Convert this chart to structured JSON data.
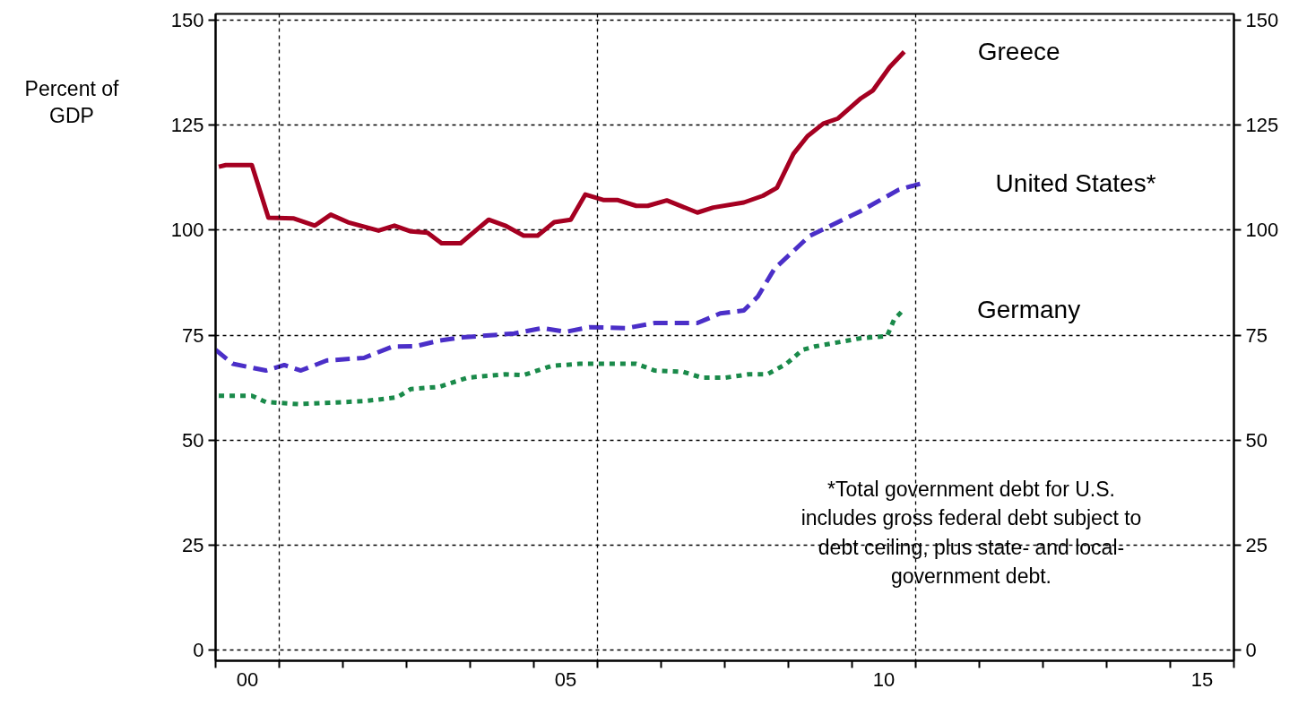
{
  "chart_data": {
    "type": "line",
    "ylabel": "Percent of GDP",
    "xlim": [
      1999.5,
      2015.5
    ],
    "xticks": [
      {
        "value": 1999.5,
        "label": null
      },
      {
        "value": 2000,
        "label": "00"
      },
      {
        "value": 2000.5,
        "label": null
      },
      {
        "value": 2001.5,
        "label": null
      },
      {
        "value": 2002.5,
        "label": null
      },
      {
        "value": 2003.5,
        "label": null
      },
      {
        "value": 2004.5,
        "label": null
      },
      {
        "value": 2005,
        "label": "05"
      },
      {
        "value": 2005.5,
        "label": null
      },
      {
        "value": 2006.5,
        "label": null
      },
      {
        "value": 2007.5,
        "label": null
      },
      {
        "value": 2008.5,
        "label": null
      },
      {
        "value": 2009.5,
        "label": null
      },
      {
        "value": 2010,
        "label": "10"
      },
      {
        "value": 2010.5,
        "label": null
      },
      {
        "value": 2011.5,
        "label": null
      },
      {
        "value": 2012.5,
        "label": null
      },
      {
        "value": 2013.5,
        "label": null
      },
      {
        "value": 2014.5,
        "label": null
      },
      {
        "value": 2015,
        "label": "15"
      },
      {
        "value": 2015.5,
        "label": null
      }
    ],
    "ylim": [
      -2.5,
      151.5
    ],
    "yticks": [
      0,
      25,
      50,
      75,
      100,
      125,
      150
    ],
    "y2lim": [
      -2.5,
      151.5
    ],
    "y2ticks": [
      0,
      25,
      50,
      75,
      100,
      125,
      150
    ],
    "grid": "y",
    "ref_lines": [
      {
        "axis": "x",
        "value": 2000.5,
        "label": null,
        "line_style": "dashed",
        "color": "#000000"
      },
      {
        "axis": "x",
        "value": 2005.5,
        "label": null,
        "line_style": "dashed",
        "color": "#000000"
      },
      {
        "axis": "x",
        "value": 2010.5,
        "label": null,
        "line_style": "dashed",
        "color": "#000000"
      }
    ],
    "series": [
      {
        "name": "Greece",
        "color": "#a50021",
        "line_style": "solid",
        "x": [
          1999.55,
          1999.66,
          2000.07,
          2000.33,
          2000.73,
          2001.06,
          2001.31,
          2001.58,
          2002.06,
          2002.31,
          2002.57,
          2002.83,
          2003.05,
          2003.35,
          2003.79,
          2004.05,
          2004.34,
          2004.56,
          2004.82,
          2005.08,
          2005.31,
          2005.59,
          2005.81,
          2006.11,
          2006.29,
          2006.59,
          2007.07,
          2007.32,
          2007.8,
          2008.1,
          2008.32,
          2008.58,
          2008.8,
          2009.05,
          2009.28,
          2009.64,
          2009.83,
          2010.09,
          2010.32
        ],
        "values": [
          115.1,
          115.5,
          115.5,
          103,
          102.8,
          101.1,
          103.7,
          101.9,
          99.9,
          101.1,
          99.7,
          99.4,
          96.9,
          96.9,
          102.5,
          101.1,
          98.7,
          98.7,
          101.9,
          102.5,
          108.5,
          107.2,
          107.2,
          105.8,
          105.8,
          107.1,
          104.2,
          105.4,
          106.6,
          108.2,
          110.1,
          118.2,
          122.4,
          125.4,
          126.6,
          131.4,
          133.3,
          138.8,
          142.5
        ]
      },
      {
        "name": "United States*",
        "color": "#4b2fc8",
        "line_style": "dashed",
        "x": [
          1999.5,
          1999.77,
          2000.29,
          2000.58,
          2000.84,
          2001.25,
          2001.83,
          2002.28,
          2002.65,
          2003.01,
          2003.38,
          2004.19,
          2004.63,
          2005.0,
          2005.37,
          2005.96,
          2006.4,
          2007.07,
          2007.43,
          2007.8,
          2008.02,
          2008.28,
          2008.83,
          2009.13,
          2009.64,
          2010.23,
          2010.6
        ],
        "values": [
          71.5,
          68.2,
          66.6,
          67.9,
          66.6,
          69.0,
          69.6,
          72.3,
          72.4,
          73.7,
          74.5,
          75.4,
          76.7,
          75.8,
          76.9,
          76.7,
          77.9,
          77.9,
          80.2,
          80.9,
          84.2,
          90.8,
          98.6,
          100.8,
          104.6,
          109.6,
          111.2
        ]
      },
      {
        "name": "Germany",
        "color": "#1a8a4a",
        "line_style": "dotted",
        "x": [
          1999.55,
          2000.07,
          2000.29,
          2000.8,
          2001.83,
          2002.35,
          2002.57,
          2003.01,
          2003.46,
          2004.05,
          2004.34,
          2004.78,
          2005.22,
          2006.11,
          2006.4,
          2006.84,
          2007.14,
          2007.51,
          2007.88,
          2008.17,
          2008.47,
          2008.72,
          2008.91,
          2009.64,
          2010.05,
          2010.16,
          2010.31
        ],
        "values": [
          60.6,
          60.6,
          59.1,
          58.6,
          59.3,
          60.2,
          62.2,
          62.7,
          64.9,
          65.7,
          65.5,
          67.7,
          68.2,
          68.2,
          66.6,
          66.3,
          64.9,
          64.9,
          65.7,
          65.7,
          68.2,
          71.5,
          72.3,
          74.3,
          74.8,
          78.7,
          81.1
        ]
      }
    ],
    "annotations": [
      "*Total government debt for U.S. includes gross federal debt subject to debt ceiling, plus state- and local-government debt."
    ]
  }
}
